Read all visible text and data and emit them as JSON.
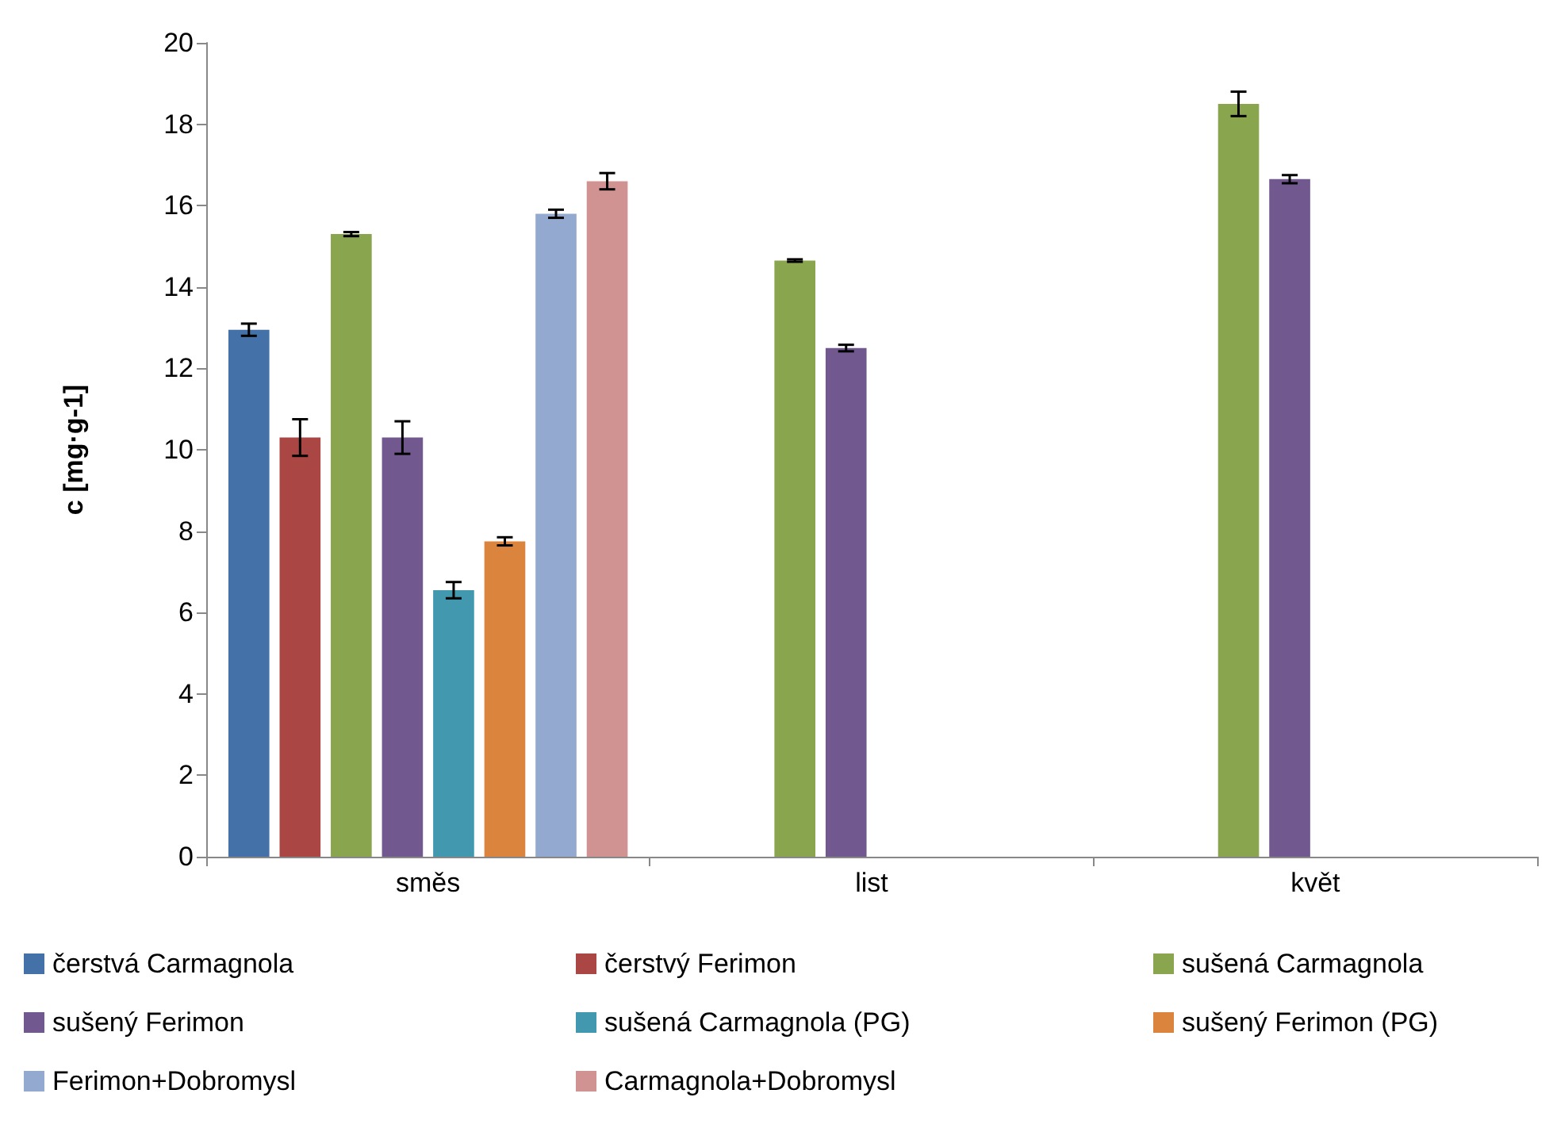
{
  "chart_data": {
    "type": "bar",
    "ylabel": "c [mg·g-1]",
    "categories": [
      "směs",
      "list",
      "květ"
    ],
    "series": [
      {
        "name": "čerstvá Carmagnola",
        "color": "#4472a8",
        "values": [
          12.95,
          null,
          null
        ],
        "errors": [
          0.15,
          null,
          null
        ]
      },
      {
        "name": "čerstvý Ferimon",
        "color": "#aa4644",
        "values": [
          10.3,
          null,
          null
        ],
        "errors": [
          0.45,
          null,
          null
        ]
      },
      {
        "name": "sušená Carmagnola",
        "color": "#89a54e",
        "values": [
          15.3,
          14.65,
          18.5
        ],
        "errors": [
          0.05,
          0.03,
          0.3
        ]
      },
      {
        "name": "sušený Ferimon",
        "color": "#71588f",
        "values": [
          10.3,
          12.5,
          16.65
        ],
        "errors": [
          0.4,
          0.08,
          0.1
        ]
      },
      {
        "name": "sušená Carmagnola (PG)",
        "color": "#4198af",
        "values": [
          6.55,
          null,
          null
        ],
        "errors": [
          0.2,
          null,
          null
        ]
      },
      {
        "name": "sušený Ferimon (PG)",
        "color": "#db843d",
        "values": [
          7.75,
          null,
          null
        ],
        "errors": [
          0.1,
          null,
          null
        ]
      },
      {
        "name": "Ferimon+Dobromysl",
        "color": "#93a9cf",
        "values": [
          15.8,
          null,
          null
        ],
        "errors": [
          0.1,
          null,
          null
        ]
      },
      {
        "name": "Carmagnola+Dobromysl",
        "color": "#d19392",
        "values": [
          16.6,
          null,
          null
        ],
        "errors": [
          0.2,
          null,
          null
        ]
      }
    ],
    "ylim": [
      0,
      20
    ],
    "yticks": [
      0,
      2,
      4,
      6,
      8,
      10,
      12,
      14,
      16,
      18,
      20
    ],
    "grid": false,
    "legend": "bottom"
  }
}
